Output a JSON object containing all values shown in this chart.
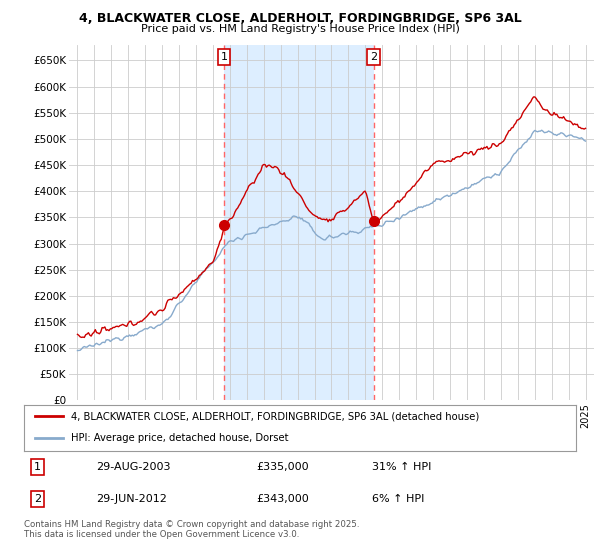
{
  "title": "4, BLACKWATER CLOSE, ALDERHOLT, FORDINGBRIDGE, SP6 3AL",
  "subtitle": "Price paid vs. HM Land Registry's House Price Index (HPI)",
  "bg_color": "#ffffff",
  "shade_color": "#ddeeff",
  "grid_color": "#cccccc",
  "ylim": [
    0,
    680000
  ],
  "yticks": [
    0,
    50000,
    100000,
    150000,
    200000,
    250000,
    300000,
    350000,
    400000,
    450000,
    500000,
    550000,
    600000,
    650000
  ],
  "ytick_labels": [
    "£0",
    "£50K",
    "£100K",
    "£150K",
    "£200K",
    "£250K",
    "£300K",
    "£350K",
    "£400K",
    "£450K",
    "£500K",
    "£550K",
    "£600K",
    "£650K"
  ],
  "sale1_year": 2003.66,
  "sale1_price": 335000,
  "sale2_year": 2012.49,
  "sale2_price": 343000,
  "legend_line1": "4, BLACKWATER CLOSE, ALDERHOLT, FORDINGBRIDGE, SP6 3AL (detached house)",
  "legend_line2": "HPI: Average price, detached house, Dorset",
  "table_row1": [
    "1",
    "29-AUG-2003",
    "£335,000",
    "31% ↑ HPI"
  ],
  "table_row2": [
    "2",
    "29-JUN-2012",
    "£343,000",
    "6% ↑ HPI"
  ],
  "footnote": "Contains HM Land Registry data © Crown copyright and database right 2025.\nThis data is licensed under the Open Government Licence v3.0.",
  "line_color_red": "#cc0000",
  "line_color_blue": "#88aacc",
  "vline_color": "#ff6666",
  "xmin": 1994.5,
  "xmax": 2025.5
}
